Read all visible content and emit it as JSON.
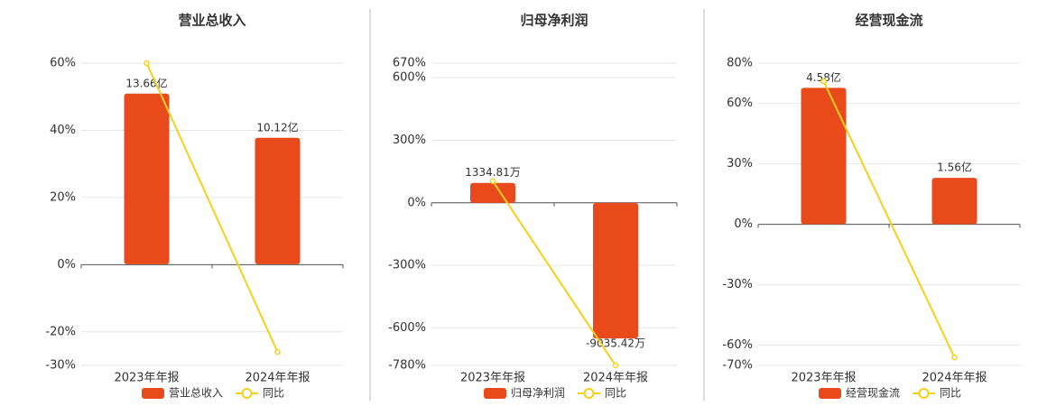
{
  "chart_data": [
    {
      "type": "bar",
      "title": "营业总收入",
      "categories": [
        "2023年年报",
        "2024年年报"
      ],
      "series": [
        {
          "name": "营业总收入",
          "type": "bar",
          "axis": "y2",
          "color": "#e84a1c",
          "values": [
            13.66,
            10.12
          ],
          "value_labels": [
            "13.66亿",
            "10.12亿"
          ]
        },
        {
          "name": "同比",
          "type": "line",
          "color": "#f5d01a",
          "values": [
            60,
            -26
          ]
        }
      ],
      "ylim": [
        -30,
        60
      ],
      "yticks": [
        {
          "value": 60,
          "label": "60%"
        },
        {
          "value": 40,
          "label": "40%"
        },
        {
          "value": 20,
          "label": "20%"
        },
        {
          "value": 0,
          "label": "0%"
        },
        {
          "value": -20,
          "label": "-20%"
        },
        {
          "value": -30,
          "label": "-30%"
        }
      ],
      "y2lim": [
        -8.1,
        16.1
      ],
      "grid": true
    },
    {
      "type": "bar",
      "title": "归母净利润",
      "categories": [
        "2023年年报",
        "2024年年报"
      ],
      "series": [
        {
          "name": "归母净利润",
          "type": "bar",
          "axis": "y2",
          "color": "#e84a1c",
          "values": [
            1334.81,
            -9035.42
          ],
          "value_labels": [
            "1334.81万",
            "-9035.42万"
          ]
        },
        {
          "name": "同比",
          "type": "line",
          "color": "#f5d01a",
          "values": [
            104,
            -780
          ]
        }
      ],
      "ylim": [
        -780,
        670
      ],
      "yticks": [
        {
          "value": 670,
          "label": "670%"
        },
        {
          "value": 600,
          "label": "600%"
        },
        {
          "value": 300,
          "label": "300%"
        },
        {
          "value": 0,
          "label": "0%"
        },
        {
          "value": -300,
          "label": "-300%"
        },
        {
          "value": -600,
          "label": "-600%"
        },
        {
          "value": -780,
          "label": "-780%"
        }
      ],
      "y2lim": [
        -10830,
        9317
      ],
      "grid": true
    },
    {
      "type": "bar",
      "title": "经营现金流",
      "categories": [
        "2023年年报",
        "2024年年报"
      ],
      "series": [
        {
          "name": "经营现金流",
          "type": "bar",
          "axis": "y2",
          "color": "#e84a1c",
          "values": [
            4.58,
            1.56
          ],
          "value_labels": [
            "4.58亿",
            "1.56亿"
          ]
        },
        {
          "name": "同比",
          "type": "line",
          "color": "#f5d01a",
          "values": [
            71,
            -66
          ]
        }
      ],
      "ylim": [
        -70,
        80
      ],
      "yticks": [
        {
          "value": 80,
          "label": "80%"
        },
        {
          "value": 60,
          "label": "60%"
        },
        {
          "value": 30,
          "label": "30%"
        },
        {
          "value": 0,
          "label": "0%"
        },
        {
          "value": -30,
          "label": "-30%"
        },
        {
          "value": -60,
          "label": "-60%"
        },
        {
          "value": -70,
          "label": "-70%"
        }
      ],
      "y2lim": [
        -4.74,
        5.41
      ],
      "grid": true
    }
  ]
}
